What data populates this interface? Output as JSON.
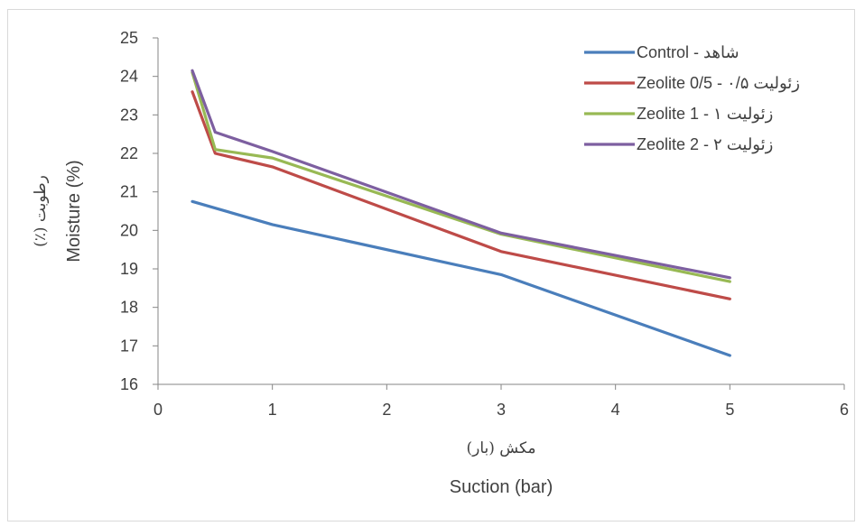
{
  "chart_data": {
    "type": "line",
    "x": [
      0.3,
      0.5,
      1,
      3,
      5
    ],
    "series": [
      {
        "name": "Control - شاهد",
        "color": "#4a7ebb",
        "x": [
          0.3,
          1,
          3,
          5
        ],
        "values": [
          20.75,
          20.15,
          18.85,
          16.75
        ]
      },
      {
        "name": "Zeolite 0/5 - زئولیت ۰/۵",
        "color": "#be4b48",
        "x": [
          0.3,
          0.5,
          1,
          3,
          5
        ],
        "values": [
          23.6,
          22.0,
          21.65,
          19.45,
          18.22
        ]
      },
      {
        "name": "Zeolite 1 - زئولیت ۱",
        "color": "#98b954",
        "x": [
          0.3,
          0.5,
          1,
          3,
          5
        ],
        "values": [
          24.1,
          22.1,
          21.88,
          19.9,
          18.67
        ]
      },
      {
        "name": "Zeolite 2 - زئولیت ۲",
        "color": "#7d5fa0",
        "x": [
          0.3,
          0.5,
          1,
          3,
          5
        ],
        "values": [
          24.15,
          22.55,
          22.05,
          19.93,
          18.77
        ]
      }
    ],
    "xlim": [
      0,
      6
    ],
    "ylim": [
      16,
      25
    ],
    "x_ticks": [
      "0",
      "1",
      "2",
      "3",
      "4",
      "5",
      "6"
    ],
    "y_ticks": [
      "16",
      "17",
      "18",
      "19",
      "20",
      "21",
      "22",
      "23",
      "24",
      "25"
    ],
    "xlabel": "Suction (bar)",
    "xlabel_fa": "مکش (بار)",
    "ylabel": "Moisture (%)",
    "ylabel_fa": "رطوبت (٪)",
    "grid": false,
    "legend_position": "top-right"
  }
}
